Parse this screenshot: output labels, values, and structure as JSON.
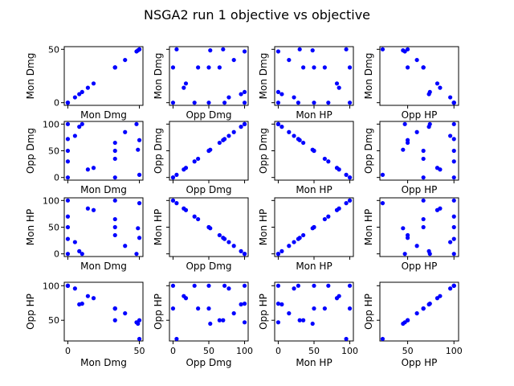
{
  "title": "NSGA2 run 1 objective vs objective",
  "chart_data": {
    "type": "scatter",
    "title": "NSGA2 run 1 objective vs objective",
    "variables": [
      "Mon Dmg",
      "Opp Dmg",
      "Mon HP",
      "Opp HP"
    ],
    "ranges": {
      "Mon Dmg": [
        -2.5,
        52.5
      ],
      "Opp Dmg": [
        -5,
        105
      ],
      "Mon HP": [
        -5,
        105
      ],
      "Opp HP": [
        20,
        105
      ]
    },
    "ticks": {
      "Mon Dmg": [
        0,
        50
      ],
      "Opp Dmg": [
        0,
        50,
        100
      ],
      "Mon HP": [
        0,
        50,
        100
      ],
      "Opp HP": [
        50,
        100
      ]
    },
    "marker_color": "#0000ff",
    "grid": false,
    "points": [
      {
        "mon_dmg": 0,
        "opp_dmg": 100,
        "mon_hp": 0,
        "opp_hp": 100
      },
      {
        "mon_dmg": 0,
        "opp_dmg": 0,
        "mon_hp": 100,
        "opp_hp": 100
      },
      {
        "mon_dmg": 0,
        "opp_dmg": 72,
        "mon_hp": 28,
        "opp_hp": 100
      },
      {
        "mon_dmg": 0,
        "opp_dmg": 50,
        "mon_hp": 50,
        "opp_hp": 100
      },
      {
        "mon_dmg": 0,
        "opp_dmg": 30,
        "mon_hp": 70,
        "opp_hp": 100
      },
      {
        "mon_dmg": 5,
        "opp_dmg": 78,
        "mon_hp": 22,
        "opp_hp": 96
      },
      {
        "mon_dmg": 8,
        "opp_dmg": 95,
        "mon_hp": 5,
        "opp_hp": 73
      },
      {
        "mon_dmg": 10,
        "opp_dmg": 100,
        "mon_hp": 0,
        "opp_hp": 74
      },
      {
        "mon_dmg": 14,
        "opp_dmg": 15,
        "mon_hp": 85,
        "opp_hp": 85
      },
      {
        "mon_dmg": 18,
        "opp_dmg": 18,
        "mon_hp": 82,
        "opp_hp": 82
      },
      {
        "mon_dmg": 33,
        "opp_dmg": 50,
        "mon_hp": 50,
        "opp_hp": 67
      },
      {
        "mon_dmg": 33,
        "opp_dmg": 35,
        "mon_hp": 65,
        "opp_hp": 67
      },
      {
        "mon_dmg": 33,
        "opp_dmg": 65,
        "mon_hp": 35,
        "opp_hp": 50
      },
      {
        "mon_dmg": 33,
        "opp_dmg": 0,
        "mon_hp": 100,
        "opp_hp": 67
      },
      {
        "mon_dmg": 40,
        "opp_dmg": 85,
        "mon_hp": 15,
        "opp_hp": 60
      },
      {
        "mon_dmg": 48,
        "opp_dmg": 100,
        "mon_hp": 0,
        "opp_hp": 47
      },
      {
        "mon_dmg": 49,
        "opp_dmg": 52,
        "mon_hp": 48,
        "opp_hp": 45
      },
      {
        "mon_dmg": 50,
        "opp_dmg": 70,
        "mon_hp": 30,
        "opp_hp": 50
      },
      {
        "mon_dmg": 50,
        "opp_dmg": 5,
        "mon_hp": 95,
        "opp_hp": 23
      }
    ]
  }
}
